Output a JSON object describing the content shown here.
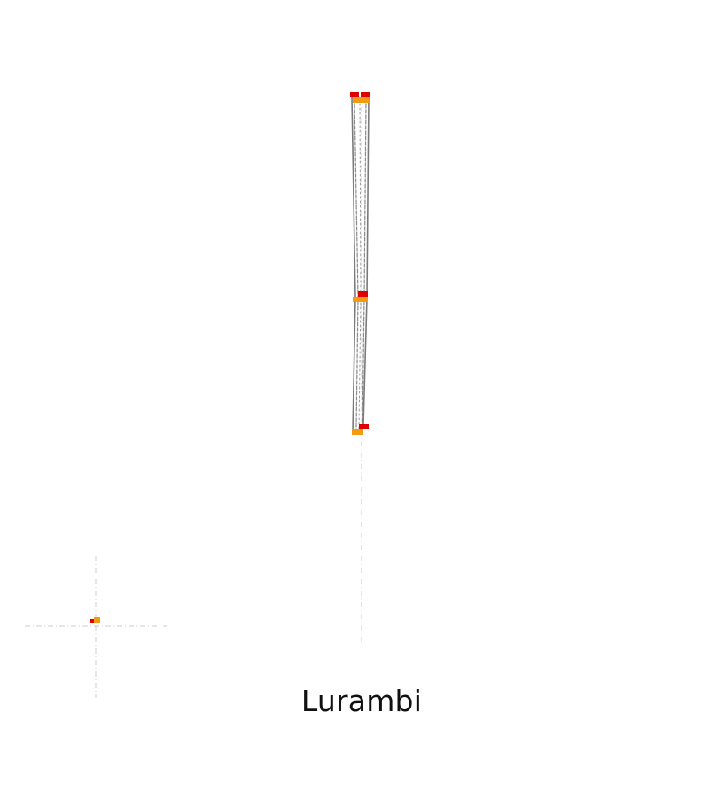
{
  "caption": "Lurambi",
  "colors": {
    "guide": "#cfcfcf",
    "track": "#7a7a7a",
    "marker_red": "#e00000",
    "marker_orange": "#f39c12",
    "background": "#ffffff"
  }
}
